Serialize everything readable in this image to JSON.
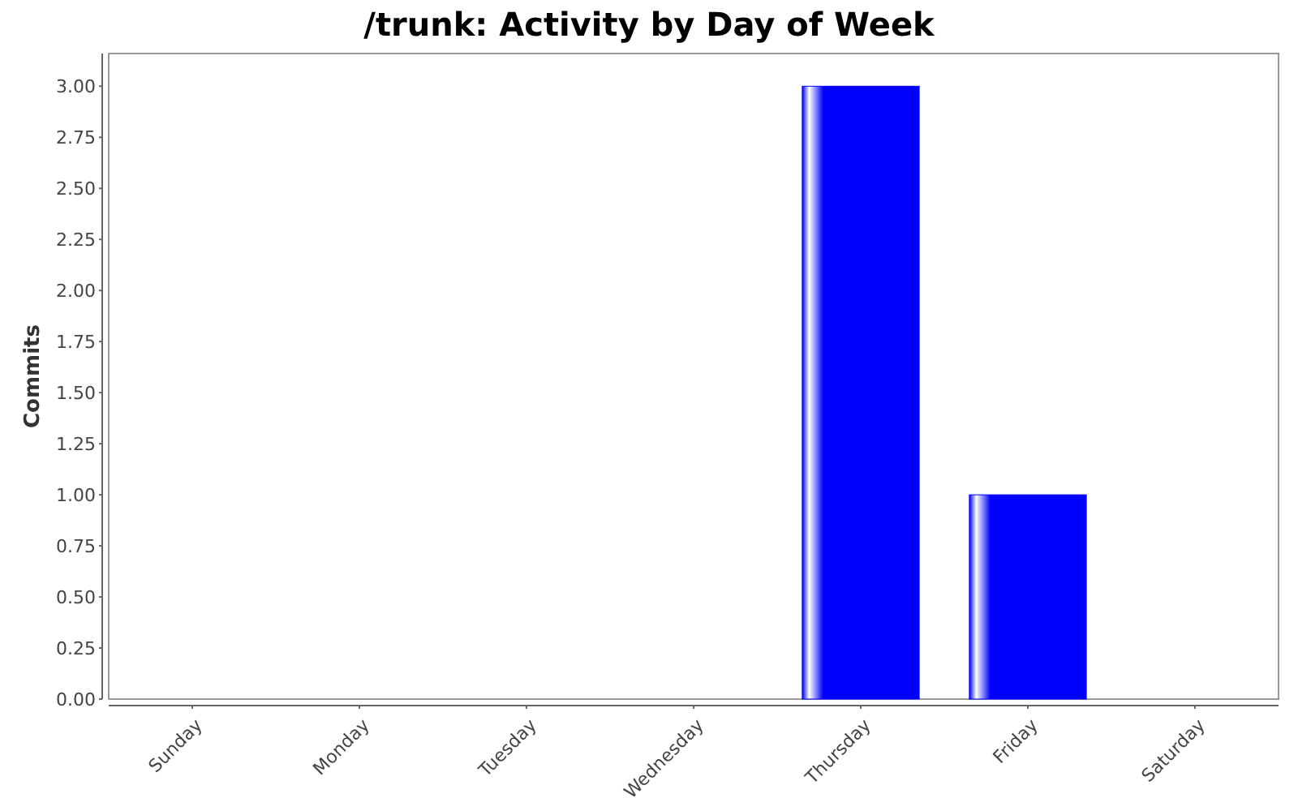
{
  "chart_data": {
    "type": "bar",
    "title": "/trunk: Activity by Day of Week",
    "ylabel": "Commits",
    "categories": [
      "Sunday",
      "Monday",
      "Tuesday",
      "Wednesday",
      "Thursday",
      "Friday",
      "Saturday"
    ],
    "values": [
      0,
      0,
      0,
      0,
      3,
      1,
      0
    ],
    "color": "#0000ff",
    "ylim": [
      0,
      3.16
    ],
    "yticks": [
      {
        "value": 0,
        "label": "0.00"
      },
      {
        "value": 0.25,
        "label": "0.25"
      },
      {
        "value": 0.5,
        "label": "0.50"
      },
      {
        "value": 0.75,
        "label": "0.75"
      },
      {
        "value": 1,
        "label": "1.00"
      },
      {
        "value": 1.25,
        "label": "1.25"
      },
      {
        "value": 1.5,
        "label": "1.50"
      },
      {
        "value": 1.75,
        "label": "1.75"
      },
      {
        "value": 2,
        "label": "2.00"
      },
      {
        "value": 2.25,
        "label": "2.25"
      },
      {
        "value": 2.5,
        "label": "2.50"
      },
      {
        "value": 2.75,
        "label": "2.75"
      },
      {
        "value": 3,
        "label": "3.00"
      }
    ],
    "grid": false
  }
}
